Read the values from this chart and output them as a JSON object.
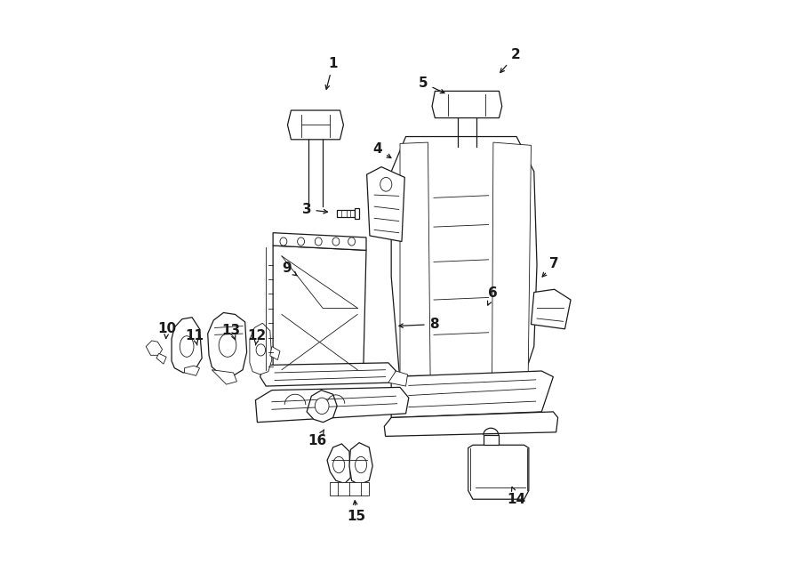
{
  "bg_color": "#ffffff",
  "line_color": "#1a1a1a",
  "fig_width": 9.0,
  "fig_height": 6.61,
  "dpi": 100,
  "callouts": {
    "1": {
      "lxy": [
        0.385,
        0.895
      ],
      "axy": [
        0.372,
        0.845
      ]
    },
    "2": {
      "lxy": [
        0.698,
        0.91
      ],
      "axy": [
        0.668,
        0.875
      ]
    },
    "3": {
      "lxy": [
        0.34,
        0.645
      ],
      "axy": [
        0.382,
        0.64
      ]
    },
    "4": {
      "lxy": [
        0.462,
        0.748
      ],
      "axy": [
        0.49,
        0.73
      ]
    },
    "5": {
      "lxy": [
        0.54,
        0.862
      ],
      "axy": [
        0.582,
        0.842
      ]
    },
    "6": {
      "lxy": [
        0.66,
        0.502
      ],
      "axy": [
        0.648,
        0.475
      ]
    },
    "7": {
      "lxy": [
        0.765,
        0.552
      ],
      "axy": [
        0.74,
        0.525
      ]
    },
    "8": {
      "lxy": [
        0.558,
        0.448
      ],
      "axy": [
        0.492,
        0.445
      ]
    },
    "9": {
      "lxy": [
        0.305,
        0.545
      ],
      "axy": [
        0.328,
        0.528
      ]
    },
    "10": {
      "lxy": [
        0.1,
        0.44
      ],
      "axy": [
        0.098,
        0.422
      ]
    },
    "11": {
      "lxy": [
        0.148,
        0.428
      ],
      "axy": [
        0.152,
        0.412
      ]
    },
    "12": {
      "lxy": [
        0.255,
        0.428
      ],
      "axy": [
        0.252,
        0.412
      ]
    },
    "13": {
      "lxy": [
        0.21,
        0.438
      ],
      "axy": [
        0.218,
        0.42
      ]
    },
    "14": {
      "lxy": [
        0.7,
        0.148
      ],
      "axy": [
        0.69,
        0.175
      ]
    },
    "15": {
      "lxy": [
        0.425,
        0.118
      ],
      "axy": [
        0.422,
        0.152
      ]
    },
    "16": {
      "lxy": [
        0.358,
        0.248
      ],
      "axy": [
        0.37,
        0.268
      ]
    }
  }
}
